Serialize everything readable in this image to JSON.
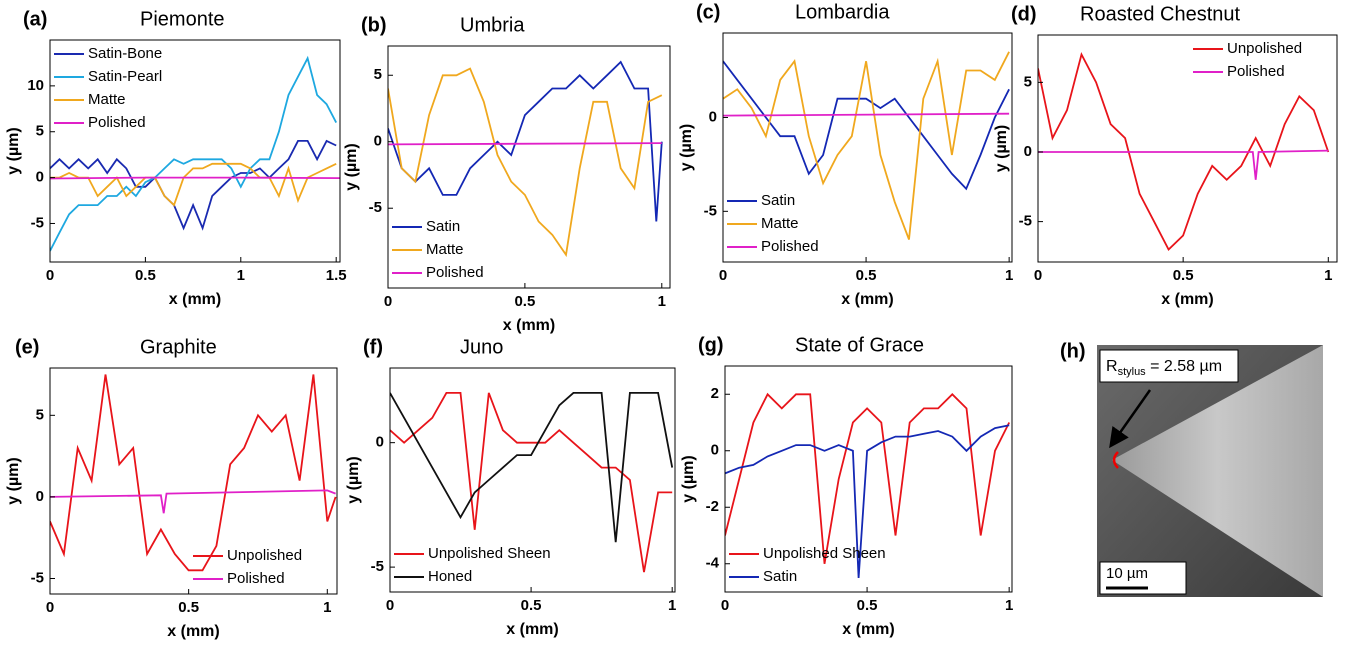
{
  "chart_data": [
    {
      "type": "line",
      "label": "(a)",
      "title": "Piemonte",
      "xlabel": "x (mm)",
      "ylabel": "y (µm)",
      "xlim": [
        0,
        1.52
      ],
      "ylim": [
        -9.2,
        15
      ],
      "xticks": [
        0,
        0.5,
        1,
        1.5
      ],
      "yticks": [
        -5,
        0,
        5,
        10
      ],
      "legend": "upper left",
      "series": [
        {
          "name": "Satin-Bone",
          "color": "#1a2ab0",
          "x": [
            0,
            0.05,
            0.1,
            0.15,
            0.2,
            0.25,
            0.3,
            0.35,
            0.4,
            0.45,
            0.5,
            0.55,
            0.6,
            0.65,
            0.7,
            0.75,
            0.8,
            0.85,
            0.9,
            0.95,
            1.0,
            1.05,
            1.1,
            1.15,
            1.2,
            1.25,
            1.3,
            1.35,
            1.4,
            1.45,
            1.5
          ],
          "values": [
            1,
            2,
            1,
            2,
            1,
            2,
            0.5,
            2,
            1,
            -1,
            -1,
            0,
            -2,
            -3,
            -5.5,
            -3,
            -5.5,
            -2,
            -1,
            0,
            0.5,
            0.5,
            1,
            0,
            1,
            2,
            4,
            4,
            2,
            4,
            3.5
          ]
        },
        {
          "name": "Satin-Pearl",
          "color": "#1ea8e0",
          "x": [
            0,
            0.05,
            0.1,
            0.15,
            0.2,
            0.25,
            0.3,
            0.35,
            0.4,
            0.45,
            0.5,
            0.55,
            0.6,
            0.65,
            0.7,
            0.75,
            0.8,
            0.85,
            0.9,
            0.95,
            1.0,
            1.05,
            1.1,
            1.15,
            1.2,
            1.25,
            1.3,
            1.35,
            1.4,
            1.45,
            1.5
          ],
          "values": [
            -8,
            -6,
            -4,
            -3,
            -3,
            -3,
            -2,
            -2,
            -1,
            -2,
            -0.5,
            0,
            1,
            2,
            1.5,
            2,
            2,
            2,
            2,
            1,
            -1,
            1,
            2,
            2,
            5,
            9,
            11,
            13,
            9,
            8,
            6
          ]
        },
        {
          "name": "Matte",
          "color": "#f0a81e",
          "x": [
            0,
            0.05,
            0.1,
            0.15,
            0.2,
            0.25,
            0.3,
            0.35,
            0.4,
            0.45,
            0.5,
            0.55,
            0.6,
            0.65,
            0.7,
            0.75,
            0.8,
            0.85,
            0.9,
            0.95,
            1.0,
            1.05,
            1.1,
            1.15,
            1.2,
            1.25,
            1.3,
            1.35,
            1.4,
            1.45,
            1.5
          ],
          "values": [
            0,
            0,
            0.5,
            0,
            0,
            -2,
            -1,
            0,
            -2,
            -1,
            0,
            0,
            -2,
            -3,
            0,
            1,
            1,
            1.5,
            1.5,
            1.5,
            1.5,
            1,
            0,
            0,
            -2,
            1,
            -2.5,
            0,
            0.5,
            1,
            1.5
          ]
        },
        {
          "name": "Polished",
          "color": "#e020c8",
          "x": [
            0,
            0.5,
            1,
            1.52
          ],
          "values": [
            -0.1,
            0,
            0,
            -0.05
          ]
        }
      ]
    },
    {
      "type": "line",
      "label": "(b)",
      "title": "Umbria",
      "xlabel": "x (mm)",
      "ylabel": "y (µm)",
      "xlim": [
        0,
        1.03
      ],
      "ylim": [
        -11,
        7.2
      ],
      "xticks": [
        0,
        0.5,
        1
      ],
      "yticks": [
        -5,
        0,
        5
      ],
      "legend": "lower left",
      "series": [
        {
          "name": "Satin",
          "color": "#1428b4",
          "x": [
            0,
            0.05,
            0.1,
            0.15,
            0.2,
            0.25,
            0.3,
            0.35,
            0.4,
            0.45,
            0.5,
            0.55,
            0.6,
            0.65,
            0.7,
            0.75,
            0.8,
            0.85,
            0.9,
            0.95,
            0.98,
            1.0
          ],
          "values": [
            1,
            -2,
            -3,
            -2,
            -4,
            -4,
            -2,
            -1,
            0,
            -1,
            2,
            3,
            4,
            4,
            5,
            4,
            5,
            6,
            4,
            4,
            -6,
            0
          ]
        },
        {
          "name": "Matte",
          "color": "#f0a81e",
          "x": [
            0,
            0.05,
            0.1,
            0.15,
            0.2,
            0.25,
            0.3,
            0.35,
            0.4,
            0.45,
            0.5,
            0.55,
            0.6,
            0.65,
            0.7,
            0.75,
            0.8,
            0.85,
            0.9,
            0.95,
            1.0
          ],
          "values": [
            4,
            -2,
            -3,
            2,
            5,
            5,
            5.5,
            3,
            -1,
            -3,
            -4,
            -6,
            -7,
            -8.5,
            -2,
            3,
            3,
            -2,
            -3.5,
            3,
            3.5
          ]
        },
        {
          "name": "Polished",
          "color": "#e020c8",
          "x": [
            0,
            1
          ],
          "values": [
            -0.2,
            -0.1
          ]
        }
      ]
    },
    {
      "type": "line",
      "label": "(c)",
      "title": "Lombardia",
      "xlabel": "x (mm)",
      "ylabel": "y (µm)",
      "xlim": [
        0,
        1.01
      ],
      "ylim": [
        -7.7,
        4.5
      ],
      "xticks": [
        0,
        0.5,
        1
      ],
      "yticks": [
        -5,
        0
      ],
      "legend": "lower left",
      "series": [
        {
          "name": "Satin",
          "color": "#1428b4",
          "x": [
            0,
            0.05,
            0.1,
            0.15,
            0.2,
            0.25,
            0.3,
            0.35,
            0.4,
            0.45,
            0.5,
            0.55,
            0.6,
            0.65,
            0.7,
            0.75,
            0.8,
            0.85,
            0.9,
            0.95,
            1.0
          ],
          "values": [
            3,
            2,
            1,
            0,
            -1,
            -1,
            -3,
            -2,
            1,
            1,
            1,
            0.5,
            1,
            0,
            -1,
            -2,
            -3,
            -3.8,
            -2,
            0,
            1.5
          ]
        },
        {
          "name": "Matte",
          "color": "#f0a81e",
          "x": [
            0,
            0.05,
            0.1,
            0.15,
            0.2,
            0.25,
            0.3,
            0.35,
            0.4,
            0.45,
            0.5,
            0.55,
            0.6,
            0.65,
            0.7,
            0.75,
            0.8,
            0.85,
            0.9,
            0.95,
            1.0
          ],
          "values": [
            1,
            1.5,
            0.5,
            -1,
            2,
            3,
            -1,
            -3.5,
            -2,
            -1,
            3,
            -2,
            -4.5,
            -6.5,
            1,
            3,
            -2,
            2.5,
            2.5,
            2,
            3.5
          ]
        },
        {
          "name": "Polished",
          "color": "#e020c8",
          "x": [
            0,
            1
          ],
          "values": [
            0.1,
            0.2
          ]
        }
      ]
    },
    {
      "type": "line",
      "label": "(d)",
      "title": "Roasted Chestnut",
      "xlabel": "x (mm)",
      "ylabel": "y (µm)",
      "xlim": [
        0,
        1.03
      ],
      "ylim": [
        -7.9,
        8.4
      ],
      "xticks": [
        0,
        0.5,
        1
      ],
      "yticks": [
        -5,
        0,
        5
      ],
      "legend": "upper right",
      "series": [
        {
          "name": "Unpolished",
          "color": "#e8141a",
          "x": [
            0,
            0.05,
            0.1,
            0.15,
            0.2,
            0.25,
            0.3,
            0.35,
            0.4,
            0.45,
            0.5,
            0.55,
            0.6,
            0.65,
            0.7,
            0.75,
            0.8,
            0.85,
            0.9,
            0.95,
            1.0
          ],
          "values": [
            6,
            1,
            3,
            7,
            5,
            2,
            1,
            -3,
            -5,
            -7,
            -6,
            -3,
            -1,
            -2,
            -1,
            1,
            -1,
            2,
            4,
            3,
            0
          ]
        },
        {
          "name": "Polished",
          "color": "#e020c8",
          "x": [
            0,
            0.74,
            0.75,
            0.76,
            1
          ],
          "values": [
            0,
            0,
            -2,
            0,
            0.1
          ]
        }
      ]
    },
    {
      "type": "line",
      "label": "(e)",
      "title": "Graphite",
      "xlabel": "x (mm)",
      "ylabel": "y (µm)",
      "xlim": [
        0,
        1.035
      ],
      "ylim": [
        -5.95,
        7.9
      ],
      "xticks": [
        0,
        0.5,
        1
      ],
      "yticks": [
        -5,
        0,
        5
      ],
      "legend": "lower right",
      "series": [
        {
          "name": "Unpolished",
          "color": "#e8141a",
          "x": [
            0,
            0.05,
            0.1,
            0.15,
            0.2,
            0.25,
            0.3,
            0.35,
            0.4,
            0.45,
            0.5,
            0.55,
            0.6,
            0.65,
            0.7,
            0.75,
            0.8,
            0.85,
            0.9,
            0.95,
            1.0,
            1.03
          ],
          "values": [
            -1.5,
            -3.5,
            3,
            1,
            7.5,
            2,
            3,
            -3.5,
            -2,
            -3.5,
            -4.5,
            -4.5,
            -3,
            2,
            3,
            5,
            4,
            5,
            1,
            7.5,
            -1.5,
            0
          ]
        },
        {
          "name": "Polished",
          "color": "#e020c8",
          "x": [
            0,
            0.4,
            0.41,
            0.42,
            1,
            1.03
          ],
          "values": [
            0,
            0.1,
            -1,
            0.2,
            0.4,
            0.2
          ]
        }
      ]
    },
    {
      "type": "line",
      "label": "(f)",
      "title": "Juno",
      "xlabel": "x (mm)",
      "ylabel": "y (µm)",
      "xlim": [
        0,
        1.01
      ],
      "ylim": [
        -6,
        3
      ],
      "xticks": [
        0,
        0.5,
        1
      ],
      "yticks": [
        -5,
        0
      ],
      "legend": "lower left",
      "series": [
        {
          "name": "Unpolished Sheen",
          "color": "#e8141a",
          "x": [
            0,
            0.05,
            0.1,
            0.15,
            0.2,
            0.25,
            0.3,
            0.35,
            0.4,
            0.45,
            0.5,
            0.55,
            0.6,
            0.65,
            0.7,
            0.75,
            0.8,
            0.85,
            0.9,
            0.95,
            1.0
          ],
          "values": [
            0.5,
            0,
            0.5,
            1,
            2,
            2,
            -3.5,
            2,
            0.5,
            0,
            0,
            0,
            0.5,
            0,
            -0.5,
            -1,
            -1,
            -1.5,
            -5.2,
            -2,
            -2
          ]
        },
        {
          "name": "Honed",
          "color": "#111111",
          "x": [
            0,
            0.05,
            0.1,
            0.15,
            0.2,
            0.25,
            0.3,
            0.35,
            0.4,
            0.45,
            0.5,
            0.55,
            0.6,
            0.65,
            0.7,
            0.75,
            0.8,
            0.85,
            0.9,
            0.95,
            1.0
          ],
          "values": [
            2,
            1,
            0,
            -1,
            -2,
            -3,
            -2,
            -1.5,
            -1,
            -0.5,
            -0.5,
            0.5,
            1.5,
            2,
            2,
            2,
            -4,
            2,
            2,
            2,
            -1
          ]
        }
      ]
    },
    {
      "type": "line",
      "label": "(g)",
      "title": "State of Grace",
      "xlabel": "x (mm)",
      "ylabel": "y (µm)",
      "xlim": [
        0,
        1.01
      ],
      "ylim": [
        -5,
        3
      ],
      "xticks": [
        0,
        0.5,
        1
      ],
      "yticks": [
        -4,
        -2,
        0,
        2
      ],
      "legend": "lower left",
      "series": [
        {
          "name": "Unpolished Sheen",
          "color": "#e8141a",
          "x": [
            0,
            0.05,
            0.1,
            0.15,
            0.2,
            0.25,
            0.3,
            0.35,
            0.4,
            0.45,
            0.5,
            0.55,
            0.6,
            0.65,
            0.7,
            0.75,
            0.8,
            0.85,
            0.9,
            0.95,
            1.0
          ],
          "values": [
            -3,
            -1,
            1,
            2,
            1.5,
            2,
            2,
            -4,
            -1,
            1,
            1.5,
            1,
            -3,
            1,
            1.5,
            1.5,
            2,
            1.5,
            -3,
            0,
            1
          ]
        },
        {
          "name": "Satin",
          "color": "#1428b4",
          "x": [
            0,
            0.05,
            0.1,
            0.15,
            0.2,
            0.25,
            0.3,
            0.35,
            0.4,
            0.45,
            0.47,
            0.5,
            0.55,
            0.6,
            0.65,
            0.7,
            0.75,
            0.8,
            0.85,
            0.9,
            0.95,
            1.0
          ],
          "values": [
            -0.8,
            -0.6,
            -0.5,
            -0.2,
            0,
            0.2,
            0.2,
            0,
            0.2,
            0,
            -4.5,
            0,
            0.3,
            0.5,
            0.5,
            0.6,
            0.7,
            0.5,
            0,
            0.5,
            0.8,
            0.9
          ]
        }
      ]
    }
  ],
  "image_panel": {
    "label": "(h)",
    "annotation_base": "R",
    "annotation_subscript": "stylus",
    "annotation_value": " = 2.58 µm",
    "scale_bar": "10 µm"
  }
}
